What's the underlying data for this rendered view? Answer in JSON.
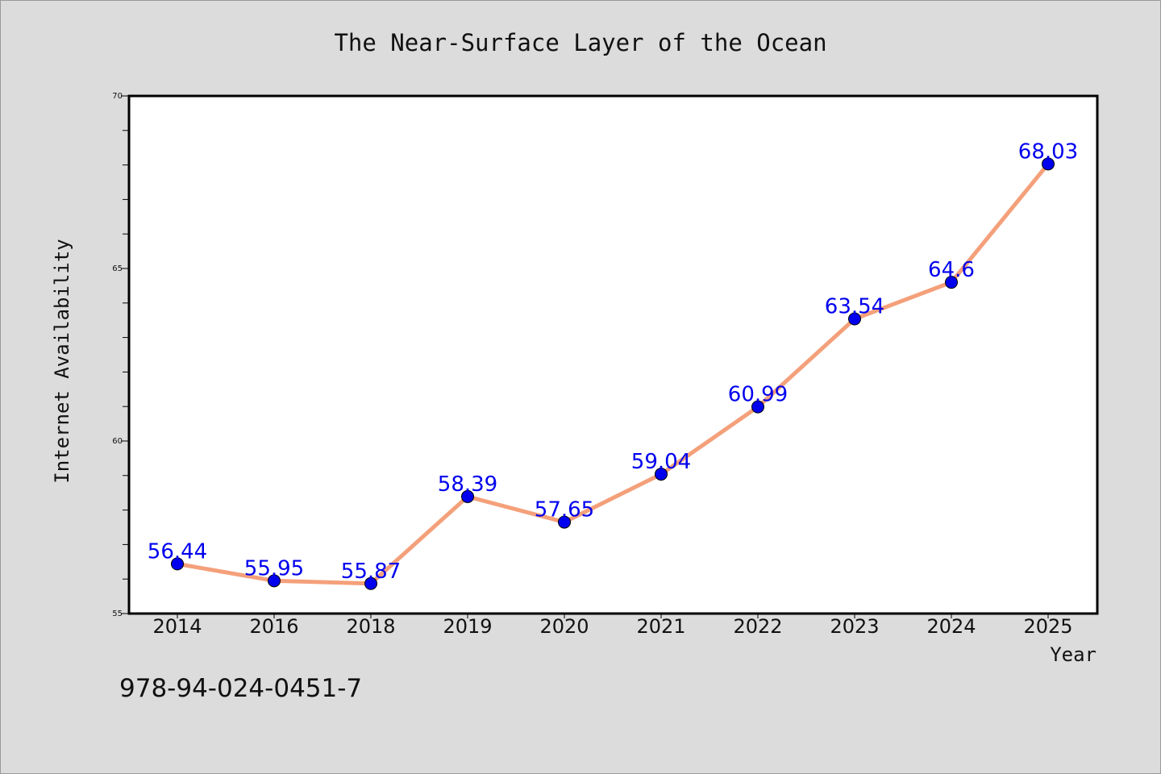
{
  "chart_data": {
    "type": "line",
    "title": "The Near-Surface Layer of the Ocean",
    "xlabel": "Year",
    "ylabel": "Internet Availability",
    "categories": [
      "2014",
      "2016",
      "2018",
      "2019",
      "2020",
      "2021",
      "2022",
      "2023",
      "2024",
      "2025"
    ],
    "values": [
      56.44,
      55.95,
      55.87,
      58.39,
      57.65,
      59.04,
      60.99,
      63.54,
      64.6,
      68.03
    ],
    "data_labels": [
      "56.44",
      "55.95",
      "55.87",
      "58.39",
      "57.65",
      "59.04",
      "60.99",
      "63.54",
      "64.6",
      "68.03"
    ],
    "ylim": [
      55,
      70
    ],
    "yticks": [
      55,
      60,
      65,
      70
    ],
    "grid": false,
    "line_color": "#f4a07a",
    "marker_color": "#0000ee",
    "label_color": "#0000ee"
  },
  "footer": {
    "isbn": "978-94-024-0451-7"
  }
}
